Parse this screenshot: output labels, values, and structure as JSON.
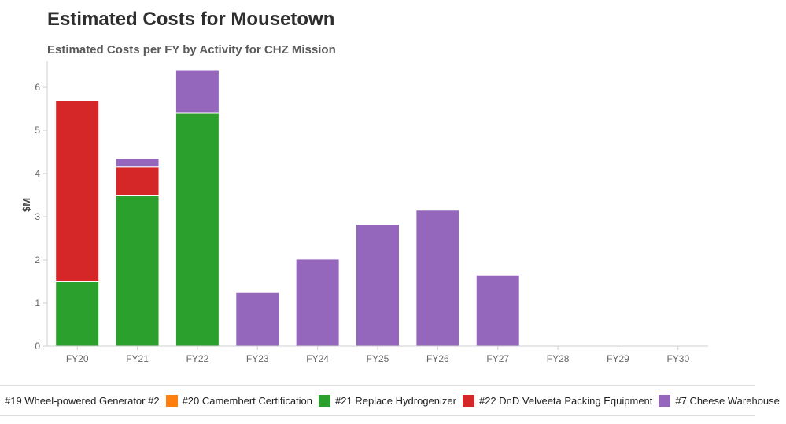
{
  "header": {
    "title": "Estimated Costs for Mousetown",
    "subtitle": "Estimated Costs per FY by Activity for CHZ Mission"
  },
  "chart_data": {
    "type": "bar",
    "stacked": true,
    "title": "Estimated Costs per FY by Activity for CHZ Mission",
    "xlabel": "",
    "ylabel": "$M",
    "ylim": [
      0,
      6.6
    ],
    "yticks": [
      0,
      1,
      2,
      3,
      4,
      5,
      6
    ],
    "grid": false,
    "legend_position": "bottom",
    "categories": [
      "FY20",
      "FY21",
      "FY22",
      "FY23",
      "FY24",
      "FY25",
      "FY26",
      "FY27",
      "FY28",
      "FY29",
      "FY30"
    ],
    "series": [
      {
        "name": "#19 Wheel-powered Generator #2",
        "color": "#1f77b4",
        "values": [
          0,
          0,
          0,
          0,
          0,
          0,
          0,
          0,
          0,
          0,
          0
        ]
      },
      {
        "name": "#20 Camembert Certification",
        "color": "#ff7f0e",
        "values": [
          0,
          0,
          0,
          0,
          0,
          0,
          0,
          0,
          0,
          0,
          0
        ]
      },
      {
        "name": "#21 Replace Hydrogenizer",
        "color": "#2ca02c",
        "values": [
          1.5,
          3.5,
          5.4,
          0,
          0,
          0,
          0,
          0,
          0,
          0,
          0
        ]
      },
      {
        "name": "#22 DnD Velveeta Packing Equipment",
        "color": "#d62728",
        "values": [
          4.2,
          0.65,
          0,
          0,
          0,
          0,
          0,
          0,
          0,
          0,
          0
        ]
      },
      {
        "name": "#7 Cheese Warehouse",
        "color": "#9467bd",
        "values": [
          0,
          0.2,
          1.0,
          1.25,
          2.02,
          2.82,
          3.15,
          1.65,
          0,
          0,
          0
        ]
      }
    ]
  }
}
